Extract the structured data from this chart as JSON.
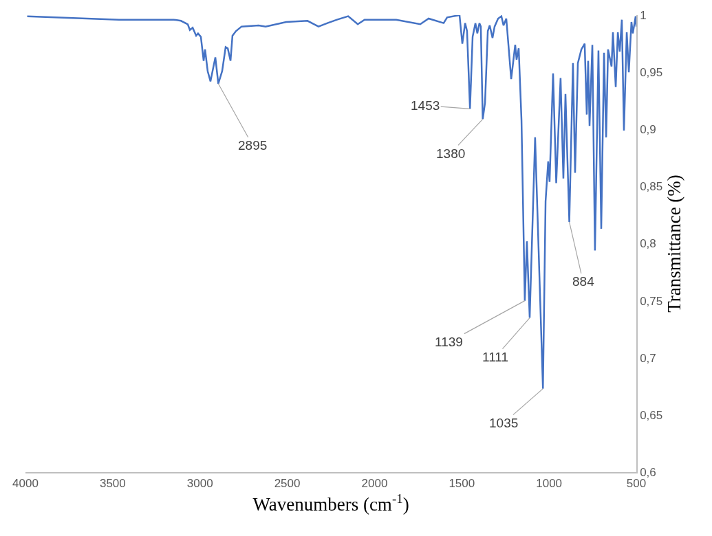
{
  "chart_data": {
    "type": "line",
    "xlabel": "Wavenumbers (cm$^{-1}$)",
    "ylabel": "Transmittance (%)",
    "xlim": [
      4000,
      500
    ],
    "xticks": [
      4000,
      3500,
      3000,
      2500,
      2000,
      1500,
      1000,
      500
    ],
    "ylim": [
      0.6,
      1
    ],
    "yticks": [
      {
        "value": 0.6,
        "label": "0,6"
      },
      {
        "value": 0.65,
        "label": "0,65"
      },
      {
        "value": 0.7,
        "label": "0,7"
      },
      {
        "value": 0.75,
        "label": "0,75"
      },
      {
        "value": 0.8,
        "label": "0,8"
      },
      {
        "value": 0.85,
        "label": "0,85"
      },
      {
        "value": 0.9,
        "label": "0,9"
      },
      {
        "value": 0.95,
        "label": "0,95"
      },
      {
        "value": 1,
        "label": "1"
      }
    ],
    "marker": "none",
    "line_style": "solid",
    "x": [
      3990,
      3464,
      3149,
      3109,
      3070,
      3058,
      3042,
      3022,
      3011,
      2995,
      2979,
      2971,
      2956,
      2940,
      2928,
      2912,
      2895,
      2873,
      2853,
      2841,
      2825,
      2814,
      2794,
      2762,
      2664,
      2624,
      2506,
      2384,
      2321,
      2270,
      2215,
      2151,
      2096,
      2057,
      1876,
      1738,
      1690,
      1604,
      1584,
      1513,
      1497,
      1481,
      1470,
      1453,
      1438,
      1422,
      1411,
      1399,
      1391,
      1380,
      1367,
      1351,
      1340,
      1324,
      1312,
      1292,
      1273,
      1261,
      1245,
      1217,
      1194,
      1186,
      1174,
      1158,
      1139,
      1127,
      1111,
      1080,
      1035,
      1020,
      1005,
      997,
      977,
      959,
      934,
      918,
      906,
      884,
      863,
      851,
      835,
      815,
      796,
      784,
      776,
      768,
      752,
      737,
      717,
      701,
      685,
      673,
      662,
      642,
      634,
      618,
      606,
      595,
      583,
      571,
      555,
      543,
      528,
      520,
      504,
      500
    ],
    "series": [
      {
        "color": "#4472c4",
        "values": [
          0.999,
          0.996,
          0.996,
          0.995,
          0.992,
          0.987,
          0.989,
          0.982,
          0.984,
          0.981,
          0.96,
          0.97,
          0.951,
          0.942,
          0.951,
          0.963,
          0.94,
          0.951,
          0.972,
          0.971,
          0.96,
          0.982,
          0.986,
          0.99,
          0.991,
          0.99,
          0.994,
          0.995,
          0.99,
          0.993,
          0.996,
          0.999,
          0.992,
          0.996,
          0.996,
          0.992,
          0.997,
          0.993,
          0.998,
          1.0,
          0.975,
          0.993,
          0.986,
          0.918,
          0.981,
          0.993,
          0.984,
          0.993,
          0.99,
          0.909,
          0.923,
          0.986,
          0.991,
          0.98,
          0.99,
          0.997,
          0.999,
          0.991,
          0.997,
          0.944,
          0.974,
          0.961,
          0.971,
          0.908,
          0.75,
          0.802,
          0.735,
          0.893,
          0.673,
          0.837,
          0.872,
          0.854,
          0.949,
          0.853,
          0.945,
          0.857,
          0.931,
          0.819,
          0.958,
          0.862,
          0.958,
          0.97,
          0.975,
          0.913,
          0.96,
          0.903,
          0.974,
          0.794,
          0.969,
          0.813,
          0.967,
          0.893,
          0.97,
          0.955,
          0.985,
          0.937,
          0.985,
          0.968,
          0.996,
          0.899,
          0.985,
          0.95,
          0.994,
          0.984,
          0.999,
          0.99
        ]
      }
    ],
    "annotations": [
      {
        "text": "2895",
        "x": 2895,
        "y": 0.94
      },
      {
        "text": "1453",
        "x": 1453,
        "y": 0.918
      },
      {
        "text": "1380",
        "x": 1380,
        "y": 0.909
      },
      {
        "text": "1139",
        "x": 1139,
        "y": 0.75
      },
      {
        "text": "1111",
        "x": 1111,
        "y": 0.735
      },
      {
        "text": "1035",
        "x": 1035,
        "y": 0.673
      },
      {
        "text": "884",
        "x": 884,
        "y": 0.819
      }
    ]
  }
}
